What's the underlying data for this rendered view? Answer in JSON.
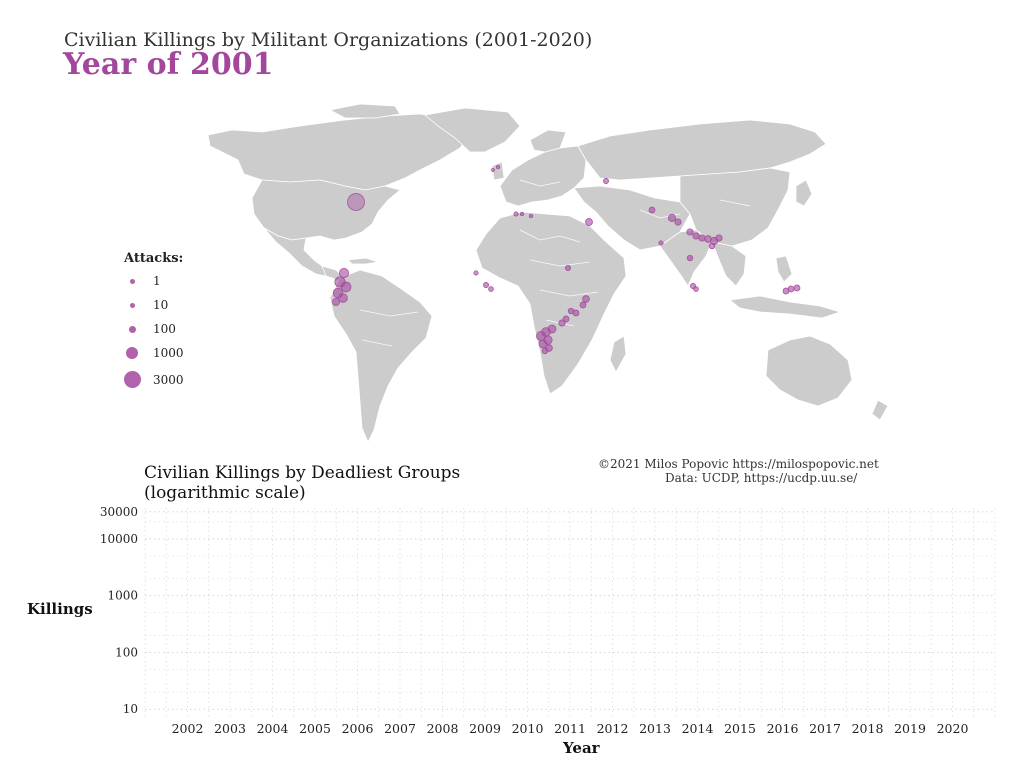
{
  "header": {
    "title": "Civilian Killings by Militant Organizations (2001-2020)",
    "year_label": "Year of 2001"
  },
  "colors": {
    "accent": "#a3479c",
    "land": "#cccccc",
    "border": "#ffffff",
    "grid": "#d0d0d0"
  },
  "map": {
    "legend": {
      "title": "Attacks:",
      "items": [
        {
          "label": "1",
          "value": 1
        },
        {
          "label": "10",
          "value": 10
        },
        {
          "label": "100",
          "value": 100
        },
        {
          "label": "1000",
          "value": 1000
        },
        {
          "label": "3000",
          "value": 3000
        }
      ]
    }
  },
  "credit": {
    "line1": "©2021 Milos Popovic https://milospopovic.net",
    "line2": "Data: UCDP, https://ucdp.uu.se/"
  },
  "chart_data": {
    "type": "line",
    "title": "Civilian Killings by Deadliest Groups",
    "subtitle": "(logarithmic scale)",
    "xlabel": "Year",
    "ylabel": "Killings",
    "y_scale": "log",
    "ylim": [
      7,
      35000
    ],
    "xlim": [
      2001,
      2021
    ],
    "yticks": [
      {
        "label": "30000",
        "value": 30000
      },
      {
        "label": "10000",
        "value": 10000
      },
      {
        "label": "1000",
        "value": 1000
      },
      {
        "label": "100",
        "value": 100
      },
      {
        "label": "10",
        "value": 10
      }
    ],
    "xticks": [
      "2002",
      "2003",
      "2004",
      "2005",
      "2006",
      "2007",
      "2008",
      "2009",
      "2010",
      "2011",
      "2012",
      "2013",
      "2014",
      "2015",
      "2016",
      "2017",
      "2018",
      "2019",
      "2020"
    ],
    "grid": true,
    "series": []
  }
}
